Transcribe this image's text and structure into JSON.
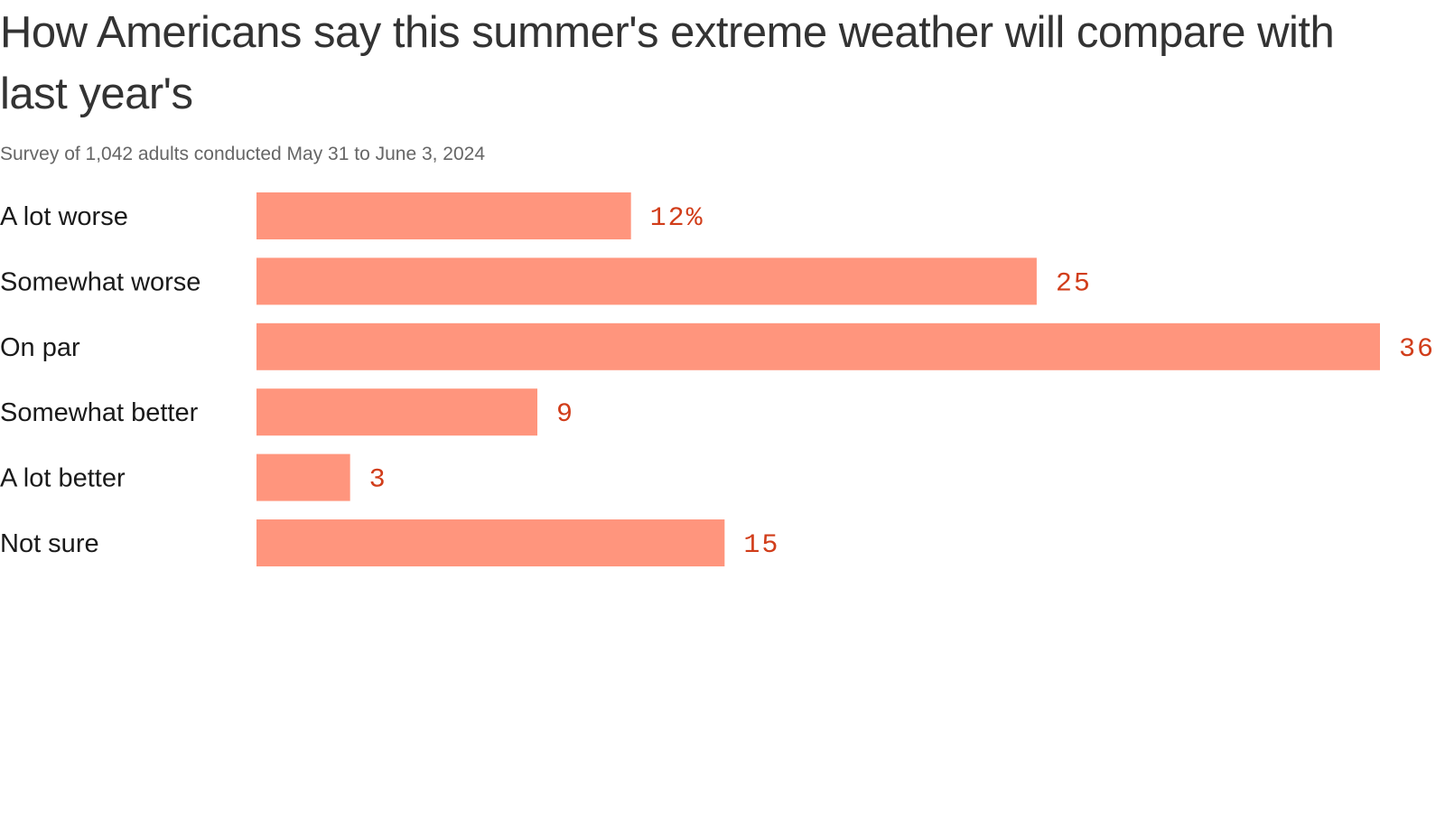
{
  "colors": {
    "bar": "#ff957d",
    "value_label": "#d13d1a",
    "category_label": "#1a1a1a",
    "title": "#333333",
    "subtitle": "#666666"
  },
  "chart_data": {
    "type": "bar",
    "orientation": "horizontal",
    "title": "How Americans say this summer's extreme weather will compare with last year's",
    "subtitle": "Survey of 1,042 adults conducted May 31 to June 3, 2024",
    "categories": [
      "A lot worse",
      "Somewhat worse",
      "On par",
      "Somewhat better",
      "A lot better",
      "Not sure"
    ],
    "values": [
      12,
      25,
      36,
      9,
      3,
      15
    ],
    "value_labels": [
      "12%",
      "25",
      "36",
      "9",
      "3",
      "15"
    ],
    "unit": "%",
    "xlim": [
      0,
      36
    ],
    "xlabel": "",
    "ylabel": "",
    "grid": false,
    "legend": "none"
  }
}
